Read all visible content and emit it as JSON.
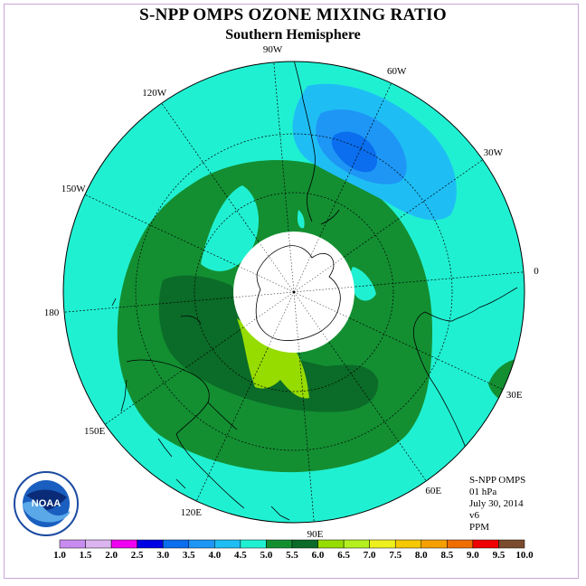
{
  "title": "S-NPP OMPS OZONE MIXING RATIO",
  "subtitle": "Southern Hemisphere",
  "longitude_labels": [
    "90W",
    "60W",
    "30W",
    "0",
    "30E",
    "60E",
    "90E",
    "120E",
    "150E",
    "180",
    "150W",
    "120W"
  ],
  "info": {
    "instrument": "S-NPP OMPS",
    "pressure": "01 hPa",
    "date": "July 30, 2014",
    "version": "v6",
    "units": "PPM"
  },
  "logo_text": "NOAA",
  "colorbar": {
    "labels": [
      "1.0",
      "1.5",
      "2.0",
      "2.5",
      "3.0",
      "3.5",
      "4.0",
      "4.5",
      "5.0",
      "5.5",
      "6.0",
      "6.5",
      "7.0",
      "7.5",
      "8.0",
      "8.5",
      "9.0",
      "9.5",
      "10.0"
    ],
    "colors": [
      "#c88cf0",
      "#dcb4f0",
      "#f000f0",
      "#0000e6",
      "#0a6eee",
      "#1e96f5",
      "#1ebef5",
      "#20f0d2",
      "#138f32",
      "#0b6b28",
      "#96dc00",
      "#b4f01e",
      "#eef01e",
      "#f5c800",
      "#f5a000",
      "#f06e00",
      "#f00000",
      "#7a4b2e"
    ]
  },
  "map_colors": {
    "background": "#20f0d2",
    "ppm_4_0": "#1ebef5",
    "ppm_3_5": "#1e96f5",
    "ppm_3_0": "#0a6eee",
    "ppm_5_0": "#138f32",
    "ppm_5_5": "#0b6b28",
    "ppm_6_0": "#96dc00"
  }
}
